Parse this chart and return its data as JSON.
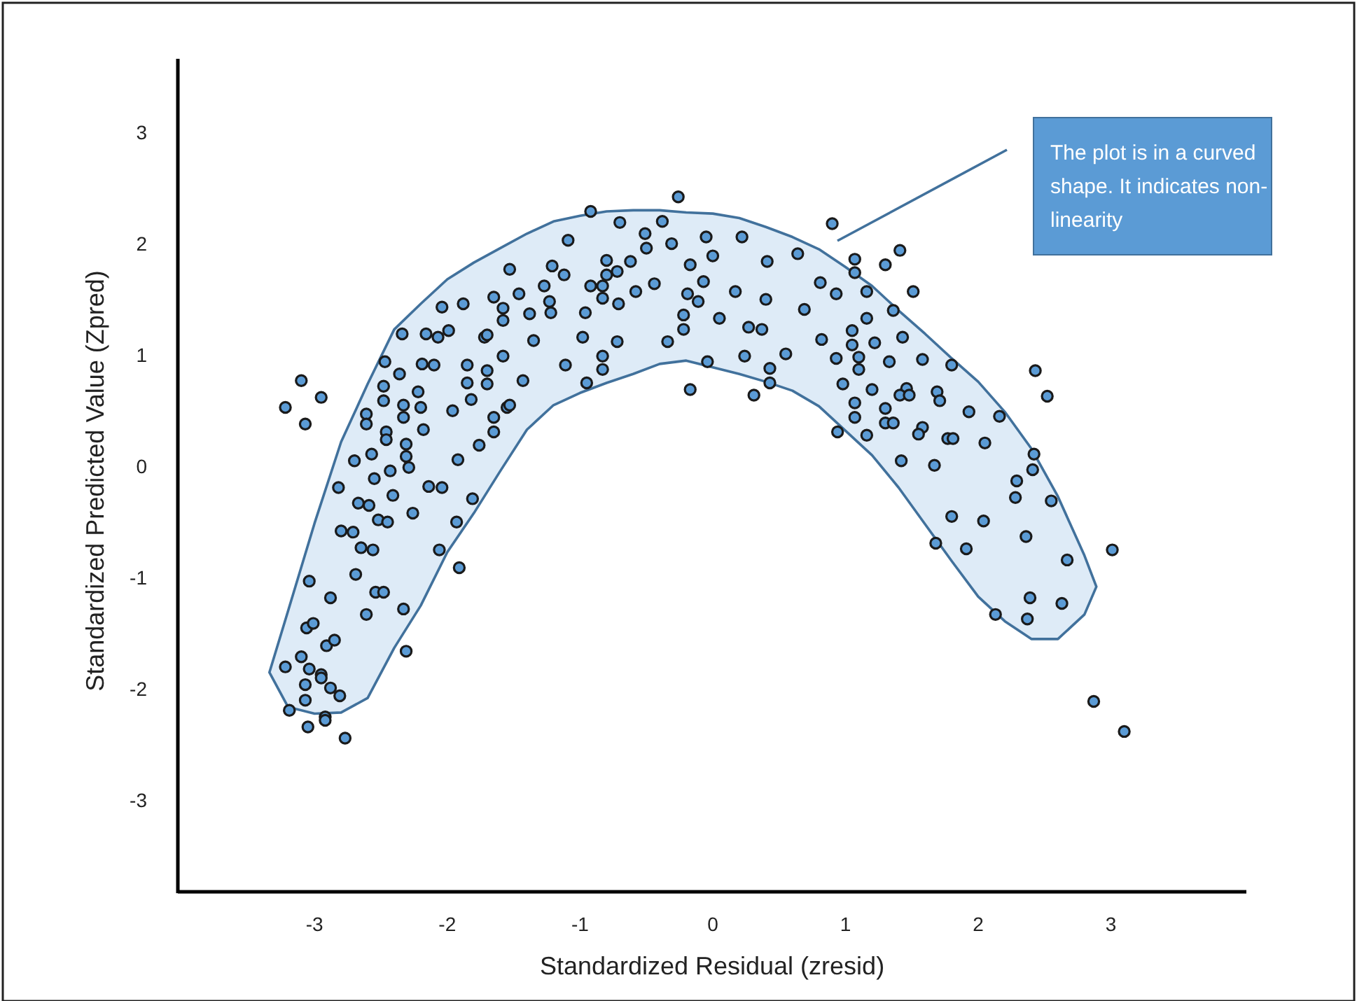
{
  "chart_data": {
    "type": "scatter",
    "xlabel": "Standardized Residual (zresid)",
    "ylabel": "Standardized Predicted Value (Zpred)",
    "xlim": [
      -4.03,
      4.02
    ],
    "ylim": [
      -3.82,
      3.66
    ],
    "xticks": [
      -3,
      -2,
      -1,
      0,
      1,
      2,
      3
    ],
    "yticks": [
      -3,
      -2,
      -1,
      0,
      1,
      2,
      3
    ],
    "grid": false,
    "legend": false,
    "marker": "circle",
    "annotations": [
      "The plot is in a curved shape. It indicates non-linearity"
    ],
    "x": [
      -1.53,
      -1.21,
      -2.04,
      -1.88,
      -1.65,
      -1.46,
      -1.27,
      -1.23,
      -1.22,
      -1.58,
      -1.38,
      -1.58,
      -2.34,
      -2.16,
      -2.07,
      -1.99,
      -1.72,
      -1.7,
      -1.35,
      -1.58,
      -2.47,
      -2.19,
      -2.1,
      -2.36,
      -1.85,
      -1.7,
      -1.85,
      -1.7,
      -1.43,
      -2.48,
      -2.22,
      -2.48,
      -2.33,
      -2.2,
      -1.82,
      -1.96,
      -1.55,
      -1.53,
      -2.61,
      -2.61,
      -2.33,
      -2.18,
      -1.65,
      -1.65,
      -2.46,
      -2.46,
      -2.31,
      -1.76,
      -2.57,
      -2.7,
      -2.31,
      -2.29,
      -2.43,
      -1.92,
      -3.1,
      -2.95,
      -3.22,
      -3.07,
      -2.55,
      -2.82,
      -2.14,
      -2.04,
      -2.41,
      -1.81,
      -2.67,
      -2.59,
      -2.26,
      -2.52,
      -2.45,
      -1.93,
      -2.8,
      -2.71,
      -2.65,
      -2.56,
      -2.06,
      -1.91,
      -3.04,
      -2.69,
      -2.88,
      -2.54,
      -2.48,
      -2.61,
      -2.33,
      -3.06,
      -3.01,
      -2.91,
      -2.85,
      -3.1,
      -3.22,
      -3.04,
      -2.95,
      -2.95,
      -2.31,
      -3.07,
      -2.88,
      -2.81,
      -3.07,
      -3.19,
      -2.92,
      -2.92,
      -3.05,
      -2.77,
      -0.26,
      -0.92,
      -0.7,
      -0.51,
      -0.38,
      -1.09,
      -0.31,
      -0.05,
      0.22,
      0.9,
      -0.5,
      -0.8,
      -0.62,
      -0.17,
      0.0,
      0.41,
      0.64,
      1.07,
      1.07,
      -1.12,
      -0.8,
      -0.72,
      -0.92,
      -0.83,
      -0.44,
      -0.07,
      -0.58,
      -0.19,
      0.17,
      0.81,
      0.93,
      -0.83,
      -0.71,
      -0.11,
      0.4,
      1.16,
      -0.96,
      -0.22,
      0.05,
      0.69,
      1.16,
      0.27,
      0.37,
      -0.22,
      1.05,
      -0.98,
      -0.72,
      -0.34,
      0.82,
      1.05,
      -0.83,
      0.24,
      0.55,
      0.93,
      1.1,
      -1.11,
      -0.83,
      -0.04,
      0.43,
      1.1,
      -0.95,
      0.43,
      0.98,
      -0.17,
      0.31,
      1.07,
      1.07,
      0.94,
      1.16,
      1.41,
      1.3,
      1.51,
      1.36,
      1.43,
      1.22,
      1.33,
      1.58,
      1.8,
      1.2,
      1.46,
      1.41,
      1.48,
      1.69,
      1.71,
      1.3,
      1.93,
      2.16,
      1.3,
      1.36,
      1.58,
      1.55,
      1.77,
      1.81,
      2.05,
      2.42,
      1.42,
      1.67,
      2.41,
      2.43,
      2.52,
      2.29,
      2.28,
      2.55,
      1.8,
      2.04,
      2.36,
      1.68,
      1.91,
      2.67,
      3.01,
      2.39,
      2.63,
      2.13,
      2.37,
      2.87,
      3.1
    ],
    "series": [
      {
        "type": "area",
        "color": "#deebf7",
        "values": [
          null,
          null,
          null,
          null,
          null,
          null,
          null,
          null,
          null,
          null,
          null,
          null,
          null,
          null,
          null,
          null,
          null,
          null,
          null,
          null,
          null,
          null,
          null,
          null,
          null,
          null,
          null,
          null,
          null,
          null,
          null,
          null,
          null
        ],
        "x": [
          -3.34,
          -3.2,
          -3.0,
          -2.8,
          -2.6,
          -2.4,
          -2.2,
          -2.0,
          -1.8,
          -1.6,
          -1.4,
          -1.2,
          -1.0,
          -0.8,
          -0.6,
          -0.4,
          -0.2,
          0,
          0.2,
          0.4,
          0.6,
          0.8,
          1.0,
          1.2,
          1.4,
          1.6,
          1.8,
          2.0,
          2.2,
          2.4,
          2.6,
          2.8,
          2.89
        ],
        "upper": [
          -1.85,
          -1.3,
          -0.51,
          0.22,
          0.74,
          1.23,
          1.46,
          1.68,
          1.83,
          1.96,
          2.09,
          2.2,
          2.25,
          2.29,
          2.3,
          2.3,
          2.28,
          2.27,
          2.23,
          2.15,
          2.06,
          1.95,
          1.79,
          1.62,
          1.4,
          1.19,
          0.97,
          0.76,
          0.49,
          0.16,
          -0.27,
          -0.8,
          -1.08
        ],
        "lower": [
          -1.85,
          -2.16,
          -2.22,
          -2.21,
          -2.08,
          -1.63,
          -1.25,
          -0.77,
          -0.42,
          -0.04,
          0.33,
          0.55,
          0.66,
          0.75,
          0.83,
          0.92,
          0.95,
          0.89,
          0.83,
          0.76,
          0.68,
          0.54,
          0.32,
          0.1,
          -0.19,
          -0.52,
          -0.85,
          -1.17,
          -1.39,
          -1.55,
          -1.55,
          -1.33,
          -1.08
        ]
      },
      {
        "color": "#5b9bd5",
        "values": [
          1.77,
          1.8,
          1.43,
          1.46,
          1.52,
          1.55,
          1.62,
          1.48,
          1.38,
          1.42,
          1.37,
          1.31,
          1.19,
          1.19,
          1.16,
          1.22,
          1.16,
          1.18,
          1.13,
          0.99,
          0.94,
          0.92,
          0.91,
          0.83,
          0.91,
          0.86,
          0.75,
          0.74,
          0.77,
          0.72,
          0.67,
          0.59,
          0.55,
          0.53,
          0.6,
          0.5,
          0.53,
          0.55,
          0.47,
          0.38,
          0.44,
          0.33,
          0.44,
          0.31,
          0.31,
          0.24,
          0.2,
          0.19,
          0.11,
          0.05,
          0.09,
          -0.01,
          -0.04,
          0.06,
          0.77,
          0.62,
          0.53,
          0.38,
          -0.11,
          -0.19,
          -0.18,
          -0.19,
          -0.26,
          -0.29,
          -0.33,
          -0.35,
          -0.42,
          -0.48,
          -0.5,
          -0.5,
          -0.58,
          -0.59,
          -0.73,
          -0.75,
          -0.75,
          -0.91,
          -1.03,
          -0.97,
          -1.18,
          -1.13,
          -1.13,
          -1.33,
          -1.28,
          -1.45,
          -1.41,
          -1.61,
          -1.56,
          -1.71,
          -1.8,
          -1.82,
          -1.87,
          -1.9,
          -1.66,
          -1.96,
          -1.99,
          -2.06,
          -2.1,
          -2.19,
          -2.25,
          -2.28,
          -2.34,
          -2.44,
          2.42,
          2.29,
          2.19,
          2.09,
          2.2,
          2.03,
          2.0,
          2.06,
          2.06,
          2.18,
          1.96,
          1.85,
          1.84,
          1.81,
          1.89,
          1.84,
          1.91,
          1.86,
          1.74,
          1.72,
          1.72,
          1.75,
          1.62,
          1.62,
          1.64,
          1.66,
          1.57,
          1.55,
          1.57,
          1.65,
          1.55,
          1.51,
          1.46,
          1.48,
          1.5,
          1.57,
          1.38,
          1.36,
          1.33,
          1.41,
          1.33,
          1.25,
          1.23,
          1.23,
          1.22,
          1.16,
          1.12,
          1.12,
          1.14,
          1.09,
          0.99,
          0.99,
          1.01,
          0.97,
          0.98,
          0.91,
          0.87,
          0.94,
          0.88,
          0.87,
          0.75,
          0.75,
          0.74,
          0.69,
          0.64,
          0.57,
          0.44,
          0.31,
          0.28,
          1.94,
          1.81,
          1.57,
          1.4,
          1.16,
          1.11,
          0.94,
          0.96,
          0.91,
          0.69,
          0.7,
          0.64,
          0.64,
          0.67,
          0.59,
          0.52,
          0.49,
          0.45,
          0.39,
          0.39,
          0.35,
          0.29,
          0.25,
          0.25,
          0.21,
          0.11,
          0.05,
          0.01,
          -0.03,
          0.86,
          0.63,
          -0.13,
          -0.28,
          -0.31,
          -0.45,
          -0.49,
          -0.63,
          -0.69,
          -0.74,
          -0.84,
          -0.75,
          -1.18,
          -1.23,
          -1.33,
          -1.37,
          -2.11,
          -2.38
        ]
      }
    ]
  }
}
